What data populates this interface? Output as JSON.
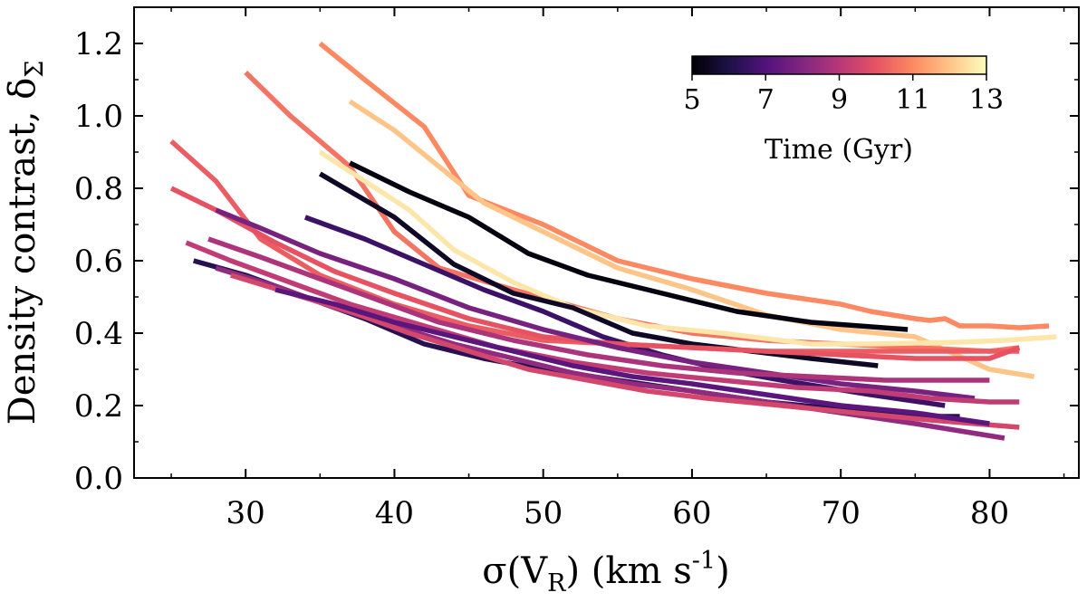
{
  "chart_data": {
    "type": "line",
    "title": "",
    "xlabel": "σ(V_R) (km s^-1)",
    "ylabel": "Density contrast, δ_Σ",
    "xlim": [
      22.5,
      86
    ],
    "ylim": [
      0.0,
      1.3
    ],
    "x_ticks": [
      30,
      40,
      50,
      60,
      70,
      80
    ],
    "y_ticks": [
      0.0,
      0.2,
      0.4,
      0.6,
      0.8,
      1.0,
      1.2
    ],
    "x_tick_labels": [
      "30",
      "40",
      "50",
      "60",
      "70",
      "80"
    ],
    "y_tick_labels": [
      "0.0",
      "0.2",
      "0.4",
      "0.6",
      "0.8",
      "1.0",
      "1.2"
    ],
    "grid": false,
    "colorbar": {
      "label": "Time (Gyr)",
      "range": [
        5,
        13
      ],
      "ticks": [
        5,
        7,
        9,
        11,
        13
      ],
      "tick_labels": [
        "5",
        "7",
        "9",
        "11",
        "13"
      ],
      "colormap": "magma",
      "placement": "top-right inset",
      "stops": [
        "#000004",
        "#1d1147",
        "#51127c",
        "#822681",
        "#b73779",
        "#e75263",
        "#fc8961",
        "#fec488",
        "#fcfdbf"
      ]
    },
    "series": [
      {
        "time": 11.0,
        "x": [
          35,
          38,
          42,
          45,
          50,
          55,
          60,
          65,
          70,
          72,
          75,
          76,
          77,
          78,
          80,
          82,
          84
        ],
        "y": [
          1.2,
          1.1,
          0.97,
          0.78,
          0.7,
          0.6,
          0.55,
          0.51,
          0.48,
          0.46,
          0.44,
          0.435,
          0.44,
          0.42,
          0.42,
          0.415,
          0.42
        ]
      },
      {
        "time": 12.0,
        "x": [
          37,
          40,
          43,
          46,
          50,
          55,
          60,
          65,
          70,
          75,
          80,
          83
        ],
        "y": [
          1.04,
          0.96,
          0.86,
          0.76,
          0.68,
          0.58,
          0.52,
          0.45,
          0.41,
          0.39,
          0.3,
          0.28
        ]
      },
      {
        "time": 10.6,
        "x": [
          30,
          33,
          37,
          40,
          43,
          48,
          55,
          60,
          65,
          70,
          75,
          80,
          82
        ],
        "y": [
          1.12,
          1.0,
          0.86,
          0.68,
          0.58,
          0.52,
          0.44,
          0.4,
          0.38,
          0.37,
          0.36,
          0.35,
          0.36
        ]
      },
      {
        "time": 12.6,
        "x": [
          35,
          38,
          41,
          44,
          48,
          52,
          57,
          62,
          68,
          72,
          78,
          81,
          84.5
        ],
        "y": [
          0.9,
          0.82,
          0.74,
          0.63,
          0.54,
          0.47,
          0.42,
          0.4,
          0.37,
          0.37,
          0.375,
          0.38,
          0.39
        ]
      },
      {
        "time": 5.2,
        "x": [
          37,
          41,
          45,
          49,
          53,
          58,
          63,
          68,
          74.5
        ],
        "y": [
          0.87,
          0.79,
          0.72,
          0.62,
          0.56,
          0.51,
          0.46,
          0.43,
          0.41
        ]
      },
      {
        "time": 5.5,
        "x": [
          35,
          40,
          44,
          48,
          52,
          56,
          60,
          64,
          68,
          72.5
        ],
        "y": [
          0.84,
          0.72,
          0.59,
          0.51,
          0.47,
          0.4,
          0.37,
          0.35,
          0.33,
          0.31
        ]
      },
      {
        "time": 6.6,
        "x": [
          34,
          38,
          42,
          46,
          50,
          54,
          58,
          62,
          66,
          72,
          77
        ],
        "y": [
          0.72,
          0.66,
          0.59,
          0.52,
          0.46,
          0.39,
          0.34,
          0.3,
          0.27,
          0.23,
          0.2
        ]
      },
      {
        "time": 10.2,
        "x": [
          25,
          28,
          31,
          35,
          40,
          45,
          50,
          55,
          60,
          65,
          70,
          75,
          82
        ],
        "y": [
          0.93,
          0.82,
          0.66,
          0.56,
          0.48,
          0.42,
          0.38,
          0.37,
          0.36,
          0.35,
          0.35,
          0.35,
          0.35
        ]
      },
      {
        "time": 10.0,
        "x": [
          25,
          28,
          32,
          36,
          40,
          45,
          50,
          55,
          60,
          65,
          70,
          75,
          80,
          82
        ],
        "y": [
          0.8,
          0.74,
          0.65,
          0.57,
          0.51,
          0.44,
          0.39,
          0.37,
          0.36,
          0.35,
          0.34,
          0.33,
          0.33,
          0.36
        ]
      },
      {
        "time": 7.8,
        "x": [
          28,
          31,
          35,
          40,
          45,
          50,
          55,
          60,
          65,
          70,
          75,
          79
        ],
        "y": [
          0.74,
          0.69,
          0.62,
          0.55,
          0.47,
          0.41,
          0.36,
          0.32,
          0.29,
          0.26,
          0.24,
          0.22
        ]
      },
      {
        "time": 9.2,
        "x": [
          26,
          29,
          33,
          37,
          42,
          47,
          52,
          57,
          62,
          67,
          72,
          76,
          80,
          82
        ],
        "y": [
          0.65,
          0.6,
          0.54,
          0.48,
          0.42,
          0.36,
          0.32,
          0.29,
          0.27,
          0.25,
          0.24,
          0.22,
          0.21,
          0.21
        ]
      },
      {
        "time": 8.8,
        "x": [
          27.5,
          31,
          35,
          39,
          43,
          48,
          53,
          58,
          63,
          68,
          73,
          78,
          80
        ],
        "y": [
          0.66,
          0.61,
          0.55,
          0.49,
          0.43,
          0.38,
          0.34,
          0.31,
          0.29,
          0.28,
          0.27,
          0.27,
          0.27
        ]
      },
      {
        "time": 6.2,
        "x": [
          26.5,
          30,
          34,
          38,
          42,
          46,
          50,
          55,
          60,
          65,
          70,
          75,
          78
        ],
        "y": [
          0.6,
          0.56,
          0.5,
          0.44,
          0.37,
          0.33,
          0.3,
          0.27,
          0.24,
          0.21,
          0.19,
          0.17,
          0.17
        ]
      },
      {
        "time": 8.3,
        "x": [
          28,
          32,
          36,
          40,
          44,
          48,
          52,
          56,
          60,
          65,
          70,
          75,
          81
        ],
        "y": [
          0.58,
          0.53,
          0.47,
          0.42,
          0.37,
          0.33,
          0.29,
          0.26,
          0.24,
          0.21,
          0.18,
          0.15,
          0.11
        ]
      },
      {
        "time": 9.6,
        "x": [
          29,
          33,
          37,
          41,
          45,
          49,
          53,
          57,
          61,
          66,
          71,
          76,
          82
        ],
        "y": [
          0.56,
          0.51,
          0.46,
          0.4,
          0.35,
          0.3,
          0.27,
          0.24,
          0.22,
          0.2,
          0.18,
          0.16,
          0.14
        ]
      },
      {
        "time": 7.2,
        "x": [
          32,
          36,
          40,
          44,
          48,
          52,
          56,
          60,
          65,
          70,
          75,
          80
        ],
        "y": [
          0.52,
          0.48,
          0.43,
          0.39,
          0.35,
          0.31,
          0.28,
          0.26,
          0.23,
          0.2,
          0.18,
          0.15
        ]
      }
    ]
  }
}
